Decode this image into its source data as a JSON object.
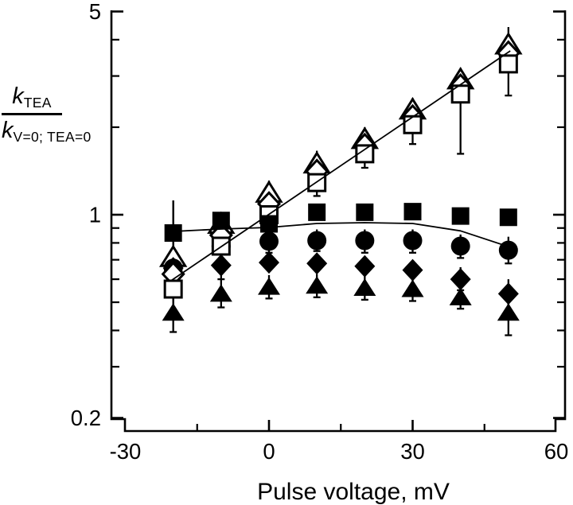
{
  "labels": {
    "numerator_main": "k",
    "numerator_sub": "TEA",
    "denominator_main": "k",
    "denominator_sub": "V=0; TEA=0"
  },
  "chart_data": {
    "type": "scatter",
    "title": "",
    "xlabel": "Pulse voltage, mV",
    "ylabel": "k_TEA / k_V=0; TEA=0",
    "y_scale": "log",
    "xlim": [
      -30,
      60
    ],
    "ylim": [
      0.2,
      5
    ],
    "axis_color": "#000000",
    "background": "#ffffff",
    "x_major_ticks": [
      {
        "v": -30,
        "label": "-30"
      },
      {
        "v": 0,
        "label": "0"
      },
      {
        "v": 30,
        "label": "30"
      },
      {
        "v": 60,
        "label": "60"
      }
    ],
    "x_minor_ticks": [
      -15,
      15,
      45
    ],
    "y_major_ticks": [
      {
        "v": 5,
        "label": "5"
      },
      {
        "v": 1,
        "label": "1"
      },
      {
        "v": 0.2,
        "label": "0.2"
      }
    ],
    "y_minor_ticks": [
      4,
      3,
      2,
      0.9,
      0.8,
      0.7,
      0.6,
      0.5,
      0.4,
      0.3
    ],
    "x": [
      -20,
      -10,
      0,
      10,
      20,
      30,
      40,
      50
    ],
    "series": [
      {
        "name": "open-triangle",
        "marker": "triangle-open",
        "values": [
          0.715,
          0.93,
          1.19,
          1.5,
          1.82,
          2.3,
          2.92,
          3.85
        ],
        "err_lo": [
          0.6,
          null,
          1.05,
          1.35,
          1.66,
          2.1,
          2.65,
          3.5
        ],
        "err_hi": [
          1.12,
          null,
          1.31,
          1.66,
          2.0,
          2.52,
          3.2,
          4.42
        ]
      },
      {
        "name": "filled-diamond",
        "marker": "diamond-filled",
        "values": [
          0.655,
          0.67,
          0.685,
          0.68,
          0.665,
          0.645,
          0.6,
          0.535
        ],
        "err_lo": [
          null,
          0.6,
          null,
          null,
          null,
          null,
          0.55,
          0.47
        ],
        "err_hi": [
          null,
          0.74,
          null,
          null,
          null,
          null,
          0.66,
          0.6
        ]
      },
      {
        "name": "filled-circle",
        "marker": "circle-filled",
        "values": [
          0.655,
          0.78,
          0.81,
          0.815,
          0.815,
          0.815,
          0.78,
          0.755
        ],
        "err_lo": [
          0.57,
          null,
          0.74,
          0.75,
          0.74,
          0.74,
          0.71,
          0.68
        ],
        "err_hi": [
          0.75,
          null,
          0.88,
          0.89,
          0.89,
          0.89,
          0.855,
          0.84
        ]
      },
      {
        "name": "open-diamond",
        "marker": "diamond-open",
        "values": [
          0.625,
          0.85,
          1.09,
          1.41,
          1.73,
          2.17,
          2.77,
          3.6
        ],
        "err_lo": [
          null,
          null,
          null,
          null,
          null,
          null,
          null,
          null
        ],
        "err_hi": [
          null,
          null,
          null,
          null,
          null,
          null,
          null,
          null
        ]
      },
      {
        "name": "open-square",
        "marker": "square-open",
        "values": [
          0.555,
          0.78,
          1.0,
          1.29,
          1.62,
          2.04,
          2.6,
          3.3
        ],
        "err_lo": [
          0.47,
          0.7,
          0.9,
          1.16,
          1.45,
          1.75,
          1.62,
          2.57
        ],
        "err_hi": [
          0.65,
          0.87,
          1.1,
          1.43,
          1.8,
          2.38,
          2.85,
          3.62
        ]
      },
      {
        "name": "filled-square",
        "marker": "square-filled",
        "values": [
          0.865,
          0.955,
          0.93,
          1.02,
          1.02,
          1.025,
          0.99,
          0.98
        ],
        "err_lo": [
          0.72,
          null,
          null,
          null,
          null,
          null,
          null,
          null
        ],
        "err_hi": [
          1.12,
          null,
          null,
          null,
          null,
          null,
          null,
          null
        ]
      },
      {
        "name": "filled-triangle",
        "marker": "triangle-filled",
        "values": [
          0.46,
          0.535,
          0.565,
          0.57,
          0.56,
          0.555,
          0.52,
          0.46
        ],
        "err_lo": [
          0.395,
          0.48,
          0.515,
          0.52,
          0.51,
          0.505,
          0.475,
          0.385
        ],
        "err_hi": [
          0.53,
          0.6,
          0.62,
          0.625,
          0.615,
          0.61,
          0.57,
          0.525
        ]
      }
    ],
    "lines": [
      {
        "name": "exponential-fit",
        "points": [
          [
            -20.3,
            0.596
          ],
          [
            50.4,
            3.66
          ]
        ]
      },
      {
        "name": "flat-fit",
        "points": [
          [
            -20.6,
            0.875
          ],
          [
            -10,
            0.893
          ],
          [
            0,
            0.904
          ],
          [
            10,
            0.933
          ],
          [
            20,
            0.939
          ],
          [
            30,
            0.933
          ],
          [
            40,
            0.88
          ],
          [
            50,
            0.777
          ]
        ]
      }
    ],
    "legend": null,
    "grid": false
  }
}
